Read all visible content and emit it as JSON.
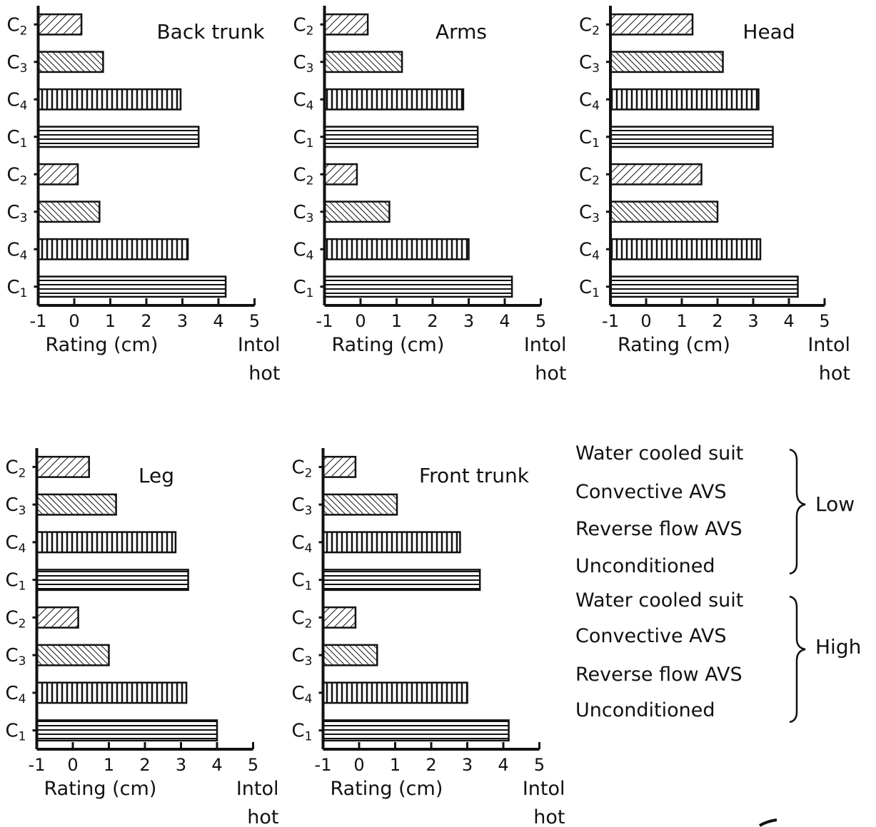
{
  "chart_data": [
    {
      "type": "bar",
      "title": "Back trunk",
      "xlabel": "Rating (cm)",
      "xlabel_right": [
        "Intol",
        "hot"
      ],
      "xlim": [
        -1,
        5
      ],
      "xticks": [
        "-1",
        "0",
        "1",
        "2",
        "3",
        "4",
        "5"
      ],
      "categories": [
        "C2",
        "C3",
        "C4",
        "C1",
        "C2",
        "C3",
        "C4",
        "C1"
      ],
      "values": [
        0.2,
        0.8,
        2.95,
        3.45,
        0.1,
        0.7,
        3.15,
        4.2
      ]
    },
    {
      "type": "bar",
      "title": "Arms",
      "xlabel": "Rating (cm)",
      "xlabel_right": [
        "Intol",
        "hot"
      ],
      "xlim": [
        -1,
        5
      ],
      "xticks": [
        "-1",
        "0",
        "1",
        "2",
        "3",
        "4",
        "5"
      ],
      "categories": [
        "C2",
        "C3",
        "C4",
        "C1",
        "C2",
        "C3",
        "C4",
        "C1"
      ],
      "values": [
        0.2,
        1.15,
        2.85,
        3.25,
        -0.1,
        0.8,
        3.0,
        4.2
      ]
    },
    {
      "type": "bar",
      "title": "Head",
      "xlabel": "Rating (cm)",
      "xlabel_right": [
        "Intol",
        "hot"
      ],
      "xlim": [
        -1,
        5
      ],
      "xticks": [
        "-1",
        "0",
        "1",
        "2",
        "3",
        "4",
        "5"
      ],
      "categories": [
        "C2",
        "C3",
        "C4",
        "C1",
        "C2",
        "C3",
        "C4",
        "C1"
      ],
      "values": [
        1.3,
        2.15,
        3.15,
        3.55,
        1.55,
        2.0,
        3.2,
        4.25
      ]
    },
    {
      "type": "bar",
      "title": "Leg",
      "xlabel": "Rating (cm)",
      "xlabel_right": [
        "Intol",
        "hot"
      ],
      "xlim": [
        -1,
        5
      ],
      "xticks": [
        "-1",
        "0",
        "1",
        "2",
        "3",
        "4",
        "5"
      ],
      "categories": [
        "C2",
        "C3",
        "C4",
        "C1",
        "C2",
        "C3",
        "C4",
        "C1"
      ],
      "values": [
        0.45,
        1.2,
        2.85,
        3.2,
        0.15,
        1.0,
        3.15,
        4.0
      ]
    },
    {
      "type": "bar",
      "title": "Front trunk",
      "xlabel": "Rating (cm)",
      "xlabel_right": [
        "Intol",
        "hot"
      ],
      "xlim": [
        -1,
        5
      ],
      "xticks": [
        "-1",
        "0",
        "1",
        "2",
        "3",
        "4",
        "5"
      ],
      "categories": [
        "C2",
        "C3",
        "C4",
        "C1",
        "C2",
        "C3",
        "C4",
        "C1"
      ],
      "values": [
        -0.1,
        1.05,
        2.8,
        3.35,
        -0.1,
        0.5,
        3.0,
        4.15
      ]
    }
  ],
  "legend": {
    "groups": [
      {
        "label": "Low",
        "items": [
          "Water cooled suit",
          "Convective AVS",
          "Reverse flow AVS",
          "Unconditioned"
        ]
      },
      {
        "label": "High",
        "items": [
          "Water cooled suit",
          "Convective AVS",
          "Reverse flow AVS",
          "Unconditioned"
        ]
      }
    ],
    "patterns": {
      "C2": "diag-right",
      "C3": "diag-left",
      "C4": "vertical",
      "C1": "horizontal"
    }
  }
}
